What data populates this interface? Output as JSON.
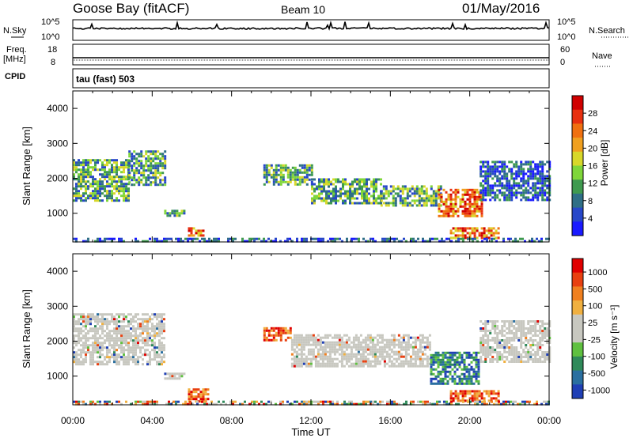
{
  "header": {
    "station": "Goose Bay (fitACF)",
    "beam": "Beam 10",
    "date": "01/May/2016"
  },
  "top_panels": {
    "nsky_label": "N.Sky",
    "nsky_ticks": [
      "10^5",
      "10^0"
    ],
    "nsearch_label": "N.Search",
    "nsearch_ticks": [
      "10^5",
      "10^0"
    ],
    "freq_label_1": "Freq.",
    "freq_label_2": "[MHz]",
    "freq_ticks": [
      "18",
      "8"
    ],
    "nave_label": "Nave",
    "nave_ticks": [
      "60",
      "0"
    ],
    "cpid_label": "CPID",
    "cpid_value": "tau (fast) 503"
  },
  "chart_data": [
    {
      "type": "heatmap",
      "panel": "power",
      "xlabel": "",
      "ylabel": "Slant Range [km]",
      "x_ticks": [
        "00:00",
        "04:00",
        "08:00",
        "12:00",
        "16:00",
        "20:00",
        "00:00"
      ],
      "xlim_hours": [
        0,
        24
      ],
      "y_ticks": [
        "1000",
        "2000",
        "3000",
        "4000"
      ],
      "ylim": [
        180,
        4500
      ],
      "colorbar_label": "Power [dB]",
      "colorbar_ticks": [
        "4",
        "8",
        "12",
        "16",
        "20",
        "24",
        "28"
      ],
      "colorbar_colors": [
        "#1a1aff",
        "#2747c9",
        "#2f6f86",
        "#3f9a4f",
        "#7fd63a",
        "#d8d82a",
        "#f0a020",
        "#f07010",
        "#e83010",
        "#d00000"
      ],
      "regions": [
        {
          "t0": 0.0,
          "t1": 2.8,
          "r0": 1350,
          "r1": 2550,
          "level": "mid"
        },
        {
          "t0": 2.8,
          "t1": 4.6,
          "r0": 1800,
          "r1": 2800,
          "level": "mid"
        },
        {
          "t0": 4.6,
          "t1": 5.6,
          "r0": 900,
          "r1": 1100,
          "level": "mid"
        },
        {
          "t0": 5.8,
          "t1": 6.6,
          "r0": 350,
          "r1": 600,
          "level": "high"
        },
        {
          "t0": 9.6,
          "t1": 12.0,
          "r0": 1800,
          "r1": 2400,
          "level": "mid"
        },
        {
          "t0": 12.0,
          "t1": 15.5,
          "r0": 1300,
          "r1": 2000,
          "level": "mid"
        },
        {
          "t0": 15.5,
          "t1": 18.5,
          "r0": 1200,
          "r1": 1800,
          "level": "mid"
        },
        {
          "t0": 18.4,
          "t1": 20.6,
          "r0": 900,
          "r1": 1700,
          "level": "high"
        },
        {
          "t0": 19.0,
          "t1": 21.5,
          "r0": 300,
          "r1": 600,
          "level": "high"
        },
        {
          "t0": 20.5,
          "t1": 24.0,
          "r0": 1400,
          "r1": 2500,
          "level": "low"
        },
        {
          "t0": 0.0,
          "t1": 24.0,
          "r0": 180,
          "r1": 300,
          "level": "low"
        }
      ]
    },
    {
      "type": "heatmap",
      "panel": "velocity",
      "xlabel": "Time UT",
      "ylabel": "Slant Range [km]",
      "x_ticks": [
        "00:00",
        "04:00",
        "08:00",
        "12:00",
        "16:00",
        "20:00",
        "00:00"
      ],
      "xlim_hours": [
        0,
        24
      ],
      "y_ticks": [
        "1000",
        "2000",
        "3000",
        "4000"
      ],
      "ylim": [
        180,
        4500
      ],
      "colorbar_label": "Velocity [m s⁻¹]",
      "colorbar_ticks": [
        "1000",
        "500",
        "100",
        "25",
        "-25",
        "-100",
        "-500",
        "-1000"
      ],
      "colorbar_colors": [
        "#1f3fb5",
        "#2a6fa0",
        "#2f8a5a",
        "#5fc040",
        "#c8c8c0",
        "#c8c8c0",
        "#f0b040",
        "#f08020",
        "#e84010",
        "#e00000"
      ],
      "regions": [
        {
          "t0": 0.0,
          "t1": 4.6,
          "r0": 1350,
          "r1": 2800,
          "level": "zero"
        },
        {
          "t0": 4.6,
          "t1": 5.6,
          "r0": 900,
          "r1": 1100,
          "level": "zero"
        },
        {
          "t0": 5.8,
          "t1": 6.8,
          "r0": 300,
          "r1": 650,
          "level": "away"
        },
        {
          "t0": 9.6,
          "t1": 11.0,
          "r0": 2000,
          "r1": 2400,
          "level": "away"
        },
        {
          "t0": 11.0,
          "t1": 18.0,
          "r0": 1300,
          "r1": 2200,
          "level": "zero"
        },
        {
          "t0": 18.0,
          "t1": 20.5,
          "r0": 800,
          "r1": 1700,
          "level": "toward"
        },
        {
          "t0": 19.0,
          "t1": 21.5,
          "r0": 300,
          "r1": 600,
          "level": "away"
        },
        {
          "t0": 20.5,
          "t1": 24.0,
          "r0": 1400,
          "r1": 2600,
          "level": "zero"
        },
        {
          "t0": 0.0,
          "t1": 24.0,
          "r0": 180,
          "r1": 300,
          "level": "mixed"
        }
      ]
    }
  ]
}
